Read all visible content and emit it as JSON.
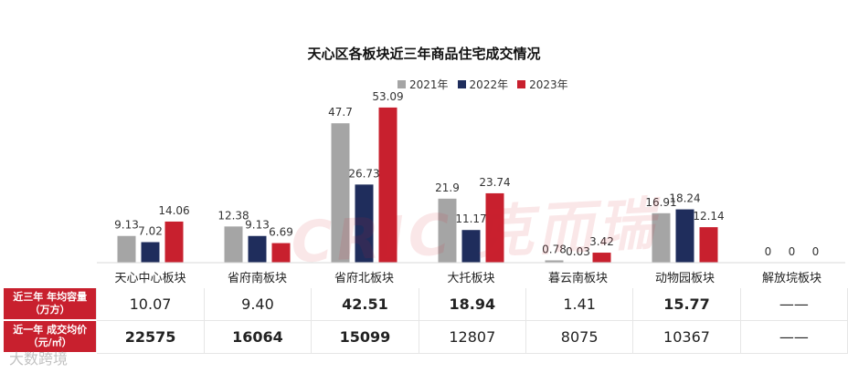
{
  "chart_data": {
    "type": "bar",
    "title": "天心区各板块近三年商品住宅成交情况",
    "categories": [
      "天心中心板块",
      "省府南板块",
      "省府北板块",
      "大托板块",
      "暮云南板块",
      "动物园板块",
      "解放垸板块"
    ],
    "series": [
      {
        "name": "2021年",
        "color": "#a5a5a5",
        "values": [
          9.13,
          12.38,
          47.7,
          21.9,
          0.78,
          16.91,
          0
        ],
        "labels": [
          "9.13",
          "12.38",
          "47.7",
          "21.9",
          "0.78",
          "16.91",
          "0"
        ]
      },
      {
        "name": "2022年",
        "color": "#1f2d5c",
        "values": [
          7.02,
          9.13,
          26.73,
          11.17,
          0.03,
          18.24,
          0
        ],
        "labels": [
          "7.02",
          "9.13",
          "26.73",
          "11.17",
          "0.03",
          "18.24",
          "0"
        ]
      },
      {
        "name": "2023年",
        "color": "#c8202e",
        "values": [
          14.06,
          6.69,
          53.09,
          23.74,
          3.42,
          12.14,
          0
        ],
        "labels": [
          "14.06",
          "6.69",
          "53.09",
          "23.74",
          "3.42",
          "12.14",
          "0"
        ]
      }
    ],
    "xlabel": "",
    "ylabel": "",
    "ylim": [
      0,
      60
    ],
    "legend": "top-center",
    "grid": false
  },
  "table": {
    "rows": [
      {
        "header_l1": "近三年 年均容量",
        "header_l2": "（万方）",
        "cells": [
          {
            "text": "10.07",
            "highlight": false
          },
          {
            "text": "9.40",
            "highlight": false
          },
          {
            "text": "42.51",
            "highlight": true
          },
          {
            "text": "18.94",
            "highlight": true
          },
          {
            "text": "1.41",
            "highlight": false
          },
          {
            "text": "15.77",
            "highlight": true
          },
          {
            "text": "——",
            "highlight": false
          }
        ]
      },
      {
        "header_l1": "近一年 成交均价",
        "header_l2": "（元/㎡）",
        "cells": [
          {
            "text": "22575",
            "highlight": true
          },
          {
            "text": "16064",
            "highlight": true
          },
          {
            "text": "15099",
            "highlight": true
          },
          {
            "text": "12807",
            "highlight": false
          },
          {
            "text": "8075",
            "highlight": false
          },
          {
            "text": "10367",
            "highlight": false
          },
          {
            "text": "——",
            "highlight": false
          }
        ]
      }
    ]
  },
  "watermark": "CRIC 克而瑞",
  "footer_watermark": "大数跨境"
}
